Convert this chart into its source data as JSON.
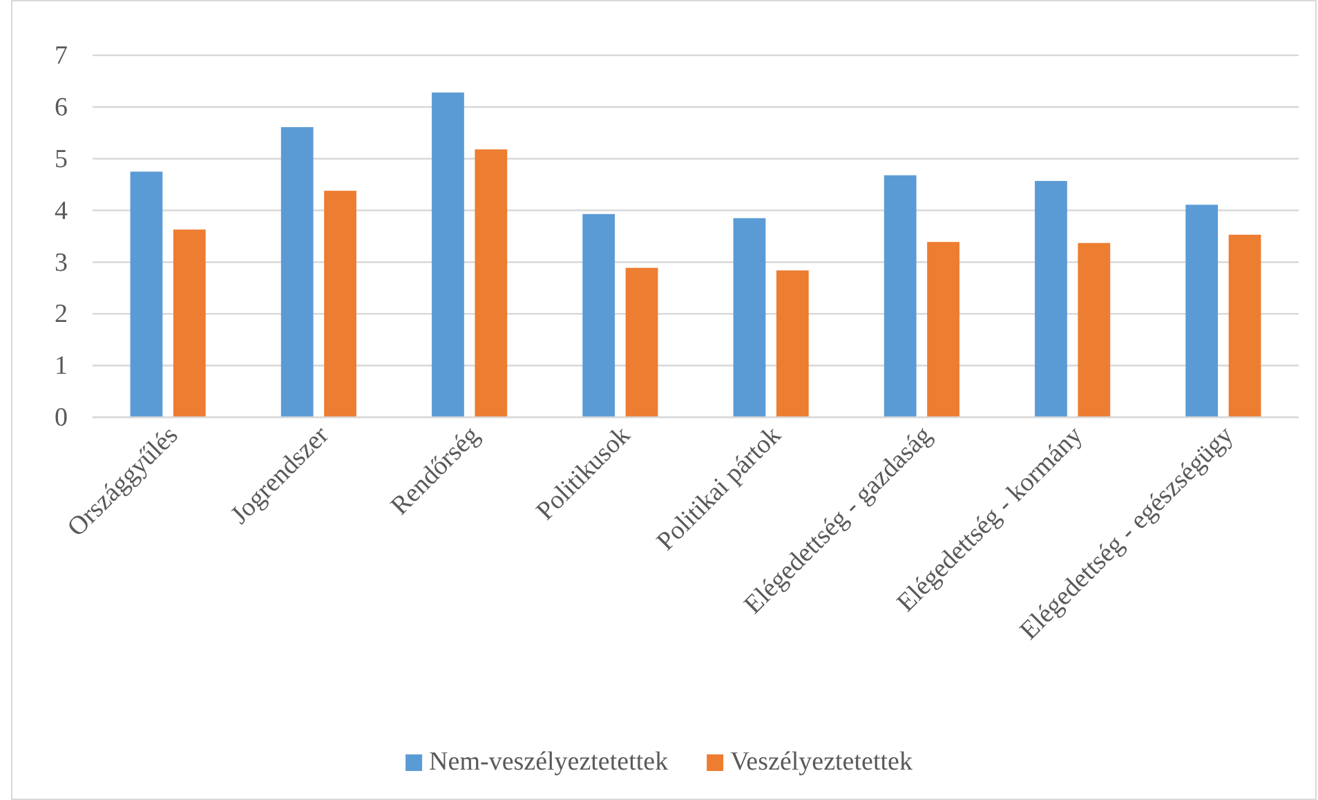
{
  "chart_data": {
    "type": "bar",
    "categories": [
      "Országgyűlés",
      "Jogrendszer",
      "Rendőrség",
      "Politikusok",
      "Politikai pártok",
      "Elégedettség - gazdaság",
      "Elégedettség - kormány",
      "Elégedettség - egészségügy"
    ],
    "series": [
      {
        "name": "Nem-veszélyeztetettek",
        "color": "#5b9bd5",
        "values": [
          4.75,
          5.61,
          6.28,
          3.93,
          3.85,
          4.68,
          4.57,
          4.11
        ]
      },
      {
        "name": "Veszélyeztetettek",
        "color": "#ed7d31",
        "values": [
          3.63,
          4.38,
          5.18,
          2.89,
          2.84,
          3.39,
          3.37,
          3.53
        ]
      }
    ],
    "ylim": [
      0,
      7
    ],
    "yticks": [
      0,
      1,
      2,
      3,
      4,
      5,
      6,
      7
    ],
    "grid": "y",
    "legend": "bottom"
  }
}
